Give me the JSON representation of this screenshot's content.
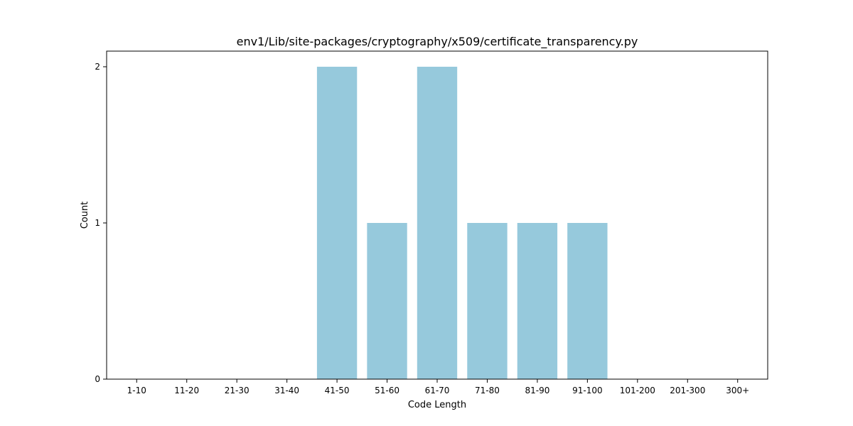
{
  "chart_data": {
    "type": "bar",
    "title": "env1/Lib/site-packages/cryptography/x509/certificate_transparency.py",
    "xlabel": "Code Length",
    "ylabel": "Count",
    "categories": [
      "1-10",
      "11-20",
      "21-30",
      "31-40",
      "41-50",
      "51-60",
      "61-70",
      "71-80",
      "81-90",
      "91-100",
      "101-200",
      "201-300",
      "300+"
    ],
    "values": [
      0,
      0,
      0,
      0,
      2,
      1,
      2,
      1,
      1,
      1,
      0,
      0,
      0
    ],
    "yticks": [
      "0",
      "1",
      "2"
    ],
    "ylim": [
      0,
      2.1
    ],
    "bar_color": "#96c9dc",
    "grid": false,
    "legend": "none"
  }
}
